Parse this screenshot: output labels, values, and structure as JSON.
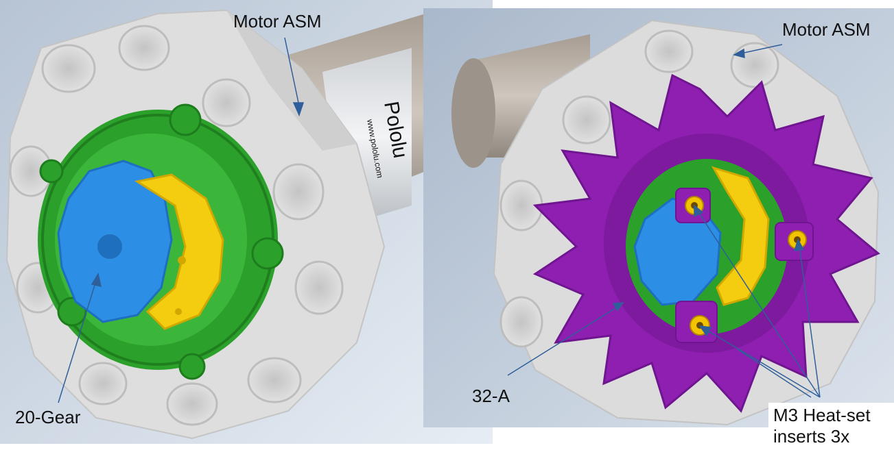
{
  "panels": [
    {
      "name": "left-render",
      "labels": {
        "motor": "Motor ASM",
        "gear": "20-Gear"
      },
      "motor_brand_text": "Pololu",
      "motor_url_text": "www.pololu.com"
    },
    {
      "name": "right-render",
      "labels": {
        "motor": "Motor ASM",
        "part": "32-A",
        "inserts_line1": "M3 Heat-set",
        "inserts_line2": "inserts 3x"
      }
    }
  ],
  "colors": {
    "background_gradient_top": "#c9d3df",
    "background_gradient_bottom": "#eef2f7",
    "housing": "#dcdcdc",
    "housing_shadow": "#b9b9b9",
    "motor_body": "#bdb5ac",
    "ring_gear": "#2ba12b",
    "sun_gear": "#2d8ee6",
    "planet_carrier": "#f4cc10",
    "star_part": "#8e1fb0",
    "heat_insert": "#d9a400",
    "leader_line": "#2f5f9a"
  }
}
